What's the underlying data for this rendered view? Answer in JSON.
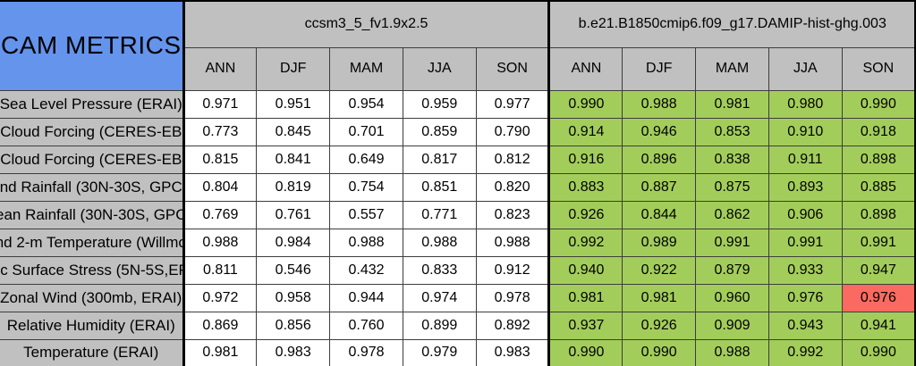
{
  "chart_data": {
    "type": "table",
    "title": "CAM METRICS",
    "groups": [
      {
        "model": "ccsm3_5_fv1.9x2.5",
        "seasons": [
          "ANN",
          "DJF",
          "MAM",
          "JJA",
          "SON"
        ]
      },
      {
        "model": "b.e21.B1850cmip6.f09_g17.DAMIP-hist-ghg.003",
        "seasons": [
          "ANN",
          "DJF",
          "MAM",
          "JJA",
          "SON"
        ]
      }
    ],
    "rows": [
      {
        "label": "Sea Level Pressure (ERAI)",
        "values": [
          [
            "0.971",
            "0.951",
            "0.954",
            "0.959",
            "0.977"
          ],
          [
            "0.990",
            "0.988",
            "0.981",
            "0.980",
            "0.990"
          ]
        ],
        "highlight": null
      },
      {
        "label": "Cloud Forcing (CERES-EB",
        "values": [
          [
            "0.773",
            "0.845",
            "0.701",
            "0.859",
            "0.790"
          ],
          [
            "0.914",
            "0.946",
            "0.853",
            "0.910",
            "0.918"
          ]
        ],
        "highlight": null
      },
      {
        "label": "Cloud Forcing (CERES-EB",
        "values": [
          [
            "0.815",
            "0.841",
            "0.649",
            "0.817",
            "0.812"
          ],
          [
            "0.916",
            "0.896",
            "0.838",
            "0.911",
            "0.898"
          ]
        ],
        "highlight": null
      },
      {
        "label": "nd Rainfall (30N-30S, GPC",
        "values": [
          [
            "0.804",
            "0.819",
            "0.754",
            "0.851",
            "0.820"
          ],
          [
            "0.883",
            "0.887",
            "0.875",
            "0.893",
            "0.885"
          ]
        ],
        "highlight": null
      },
      {
        "label": "ean Rainfall (30N-30S, GPC",
        "values": [
          [
            "0.769",
            "0.761",
            "0.557",
            "0.771",
            "0.823"
          ],
          [
            "0.926",
            "0.844",
            "0.862",
            "0.906",
            "0.898"
          ]
        ],
        "highlight": null
      },
      {
        "label": "nd 2-m Temperature (Willmo",
        "values": [
          [
            "0.988",
            "0.984",
            "0.988",
            "0.988",
            "0.988"
          ],
          [
            "0.992",
            "0.989",
            "0.991",
            "0.991",
            "0.991"
          ]
        ],
        "highlight": null
      },
      {
        "label": "fic Surface Stress (5N-5S,ER",
        "values": [
          [
            "0.811",
            "0.546",
            "0.432",
            "0.833",
            "0.912"
          ],
          [
            "0.940",
            "0.922",
            "0.879",
            "0.933",
            "0.947"
          ]
        ],
        "highlight": null
      },
      {
        "label": "Zonal Wind (300mb, ERAI)",
        "values": [
          [
            "0.972",
            "0.958",
            "0.944",
            "0.974",
            "0.978"
          ],
          [
            "0.981",
            "0.981",
            "0.960",
            "0.976",
            "0.976"
          ]
        ],
        "highlight": {
          "group_index": 1,
          "season_index": 4
        }
      },
      {
        "label": "Relative Humidity (ERAI)",
        "values": [
          [
            "0.869",
            "0.856",
            "0.760",
            "0.899",
            "0.892"
          ],
          [
            "0.937",
            "0.926",
            "0.909",
            "0.943",
            "0.941"
          ]
        ],
        "highlight": null
      },
      {
        "label": "Temperature (ERAI)",
        "values": [
          [
            "0.981",
            "0.983",
            "0.978",
            "0.979",
            "0.983"
          ],
          [
            "0.990",
            "0.990",
            "0.988",
            "0.992",
            "0.990"
          ]
        ],
        "highlight": null
      }
    ],
    "colors": {
      "corner_bg": "#6494ec",
      "header_bg": "#c0c0c0",
      "model1_bg": "#ffffff",
      "model2_bg": "#a3cd5a",
      "highlight_bg": "#fa6a60",
      "border": "#3d3d3d",
      "thick_border": "#000000",
      "text": "#000000"
    }
  }
}
